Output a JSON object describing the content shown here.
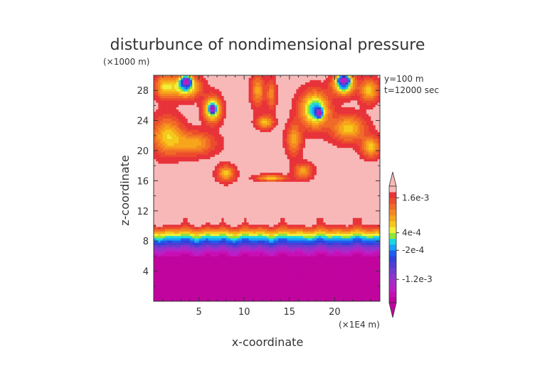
{
  "chart_data": {
    "type": "heatmap",
    "title": "disturbunce of nondimensional pressure",
    "xlabel": "x-coordinate",
    "ylabel": "z-coordinate",
    "x_unit": "(×1E4 m)",
    "y_unit": "(×1000 m)",
    "annotations": [
      "y=100 m",
      "t=12000 sec"
    ],
    "xlim": [
      0,
      25
    ],
    "ylim": [
      0,
      30
    ],
    "x_ticks": [
      5,
      10,
      15,
      20
    ],
    "y_ticks": [
      4,
      8,
      12,
      16,
      20,
      24,
      28
    ],
    "x_tick_labels": [
      "5",
      "10",
      "15",
      "20"
    ],
    "y_tick_labels": [
      "4",
      "8",
      "12",
      "16",
      "20",
      "24",
      "28"
    ],
    "colorbar": {
      "labels": [
        "1.6e-3",
        "4e-4",
        "-2e-4",
        "-1.2e-3"
      ],
      "label_values": [
        0.0016,
        0.0004,
        -0.0002,
        -0.0012
      ],
      "levels": [
        -0.002,
        -0.0018,
        -0.0016,
        -0.0014,
        -0.0012,
        -0.001,
        -0.0008,
        -0.0006,
        -0.0004,
        -0.0002,
        0.0,
        0.0002,
        0.0004,
        0.0006,
        0.0008,
        0.001,
        0.0012,
        0.0014,
        0.0016,
        0.0018
      ],
      "colors": [
        "#c1049e",
        "#c60fb4",
        "#bb1ec6",
        "#a62ac9",
        "#8f33cc",
        "#6f3bd0",
        "#4f3ed3",
        "#2f42dc",
        "#1f5cf0",
        "#1aa0f5",
        "#1bd8e0",
        "#8ee63c",
        "#f0f03a",
        "#f6c81c",
        "#f7a51b",
        "#f58722",
        "#f06a28",
        "#ec4d2d",
        "#e8333a",
        "#f8b8b8"
      ]
    },
    "field": {
      "description": "background value in mid levels ~1.8e-3 (pink); strong negative below 8 km",
      "base_profile": [
        {
          "z": 0,
          "v": -0.002
        },
        {
          "z": 5.5,
          "v": -0.002
        },
        {
          "z": 6.5,
          "v": -0.0016
        },
        {
          "z": 7.3,
          "v": -0.001
        },
        {
          "z": 7.9,
          "v": -0.0004
        },
        {
          "z": 8.4,
          "v": 0.0
        },
        {
          "z": 8.9,
          "v": 0.0005
        },
        {
          "z": 9.4,
          "v": 0.0011
        },
        {
          "z": 9.9,
          "v": 0.0016
        },
        {
          "z": 10.4,
          "v": 0.0019
        },
        {
          "z": 30,
          "v": 0.0019
        }
      ],
      "blobs": [
        {
          "x": 1.5,
          "z": 22.0,
          "a": -0.0012,
          "sx": 1.6,
          "sz": 2.4
        },
        {
          "x": 4.5,
          "z": 21.0,
          "a": -0.001,
          "sx": 2.2,
          "sz": 1.5
        },
        {
          "x": 8.0,
          "z": 17.0,
          "a": -0.0012,
          "sx": 0.9,
          "sz": 1.0
        },
        {
          "x": 6.5,
          "z": 25.5,
          "a": -0.002,
          "sx": 0.9,
          "sz": 1.6
        },
        {
          "x": 6.5,
          "z": 25.6,
          "a": -0.002,
          "sx": 0.3,
          "sz": 0.5
        },
        {
          "x": 3.5,
          "z": 28.5,
          "a": -0.0018,
          "sx": 1.5,
          "sz": 1.4
        },
        {
          "x": 3.6,
          "z": 29.3,
          "a": -0.0022,
          "sx": 0.6,
          "sz": 0.7
        },
        {
          "x": 1.2,
          "z": 28.5,
          "a": -0.0012,
          "sx": 1.0,
          "sz": 1.5
        },
        {
          "x": 12.3,
          "z": 23.8,
          "a": -0.0012,
          "sx": 0.9,
          "sz": 0.8
        },
        {
          "x": 13.0,
          "z": 16.4,
          "a": -0.0012,
          "sx": 1.6,
          "sz": 0.4
        },
        {
          "x": 11.5,
          "z": 28.0,
          "a": -0.001,
          "sx": 0.7,
          "sz": 2.0
        },
        {
          "x": 13.0,
          "z": 27.5,
          "a": -0.0008,
          "sx": 0.5,
          "sz": 2.0
        },
        {
          "x": 15.5,
          "z": 21.5,
          "a": -0.001,
          "sx": 0.8,
          "sz": 2.0
        },
        {
          "x": 16.5,
          "z": 17.3,
          "a": -0.001,
          "sx": 1.0,
          "sz": 1.0
        },
        {
          "x": 17.8,
          "z": 25.5,
          "a": -0.002,
          "sx": 1.5,
          "sz": 2.2
        },
        {
          "x": 18.3,
          "z": 25.0,
          "a": -0.002,
          "sx": 0.35,
          "sz": 0.6
        },
        {
          "x": 21.0,
          "z": 28.8,
          "a": -0.0022,
          "sx": 1.1,
          "sz": 1.3
        },
        {
          "x": 21.0,
          "z": 29.5,
          "a": -0.002,
          "sx": 0.7,
          "sz": 0.5
        },
        {
          "x": 21.5,
          "z": 23.0,
          "a": -0.0012,
          "sx": 1.8,
          "sz": 1.7
        },
        {
          "x": 24.0,
          "z": 20.5,
          "a": -0.0012,
          "sx": 1.0,
          "sz": 1.3
        },
        {
          "x": 23.8,
          "z": 28.0,
          "a": -0.0012,
          "sx": 1.0,
          "sz": 1.5
        }
      ]
    }
  }
}
